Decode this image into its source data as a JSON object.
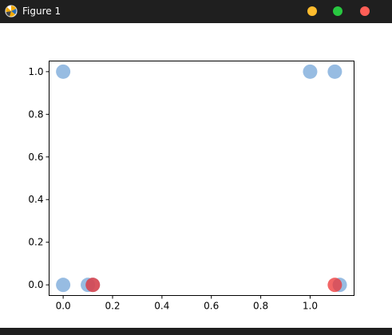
{
  "window": {
    "title": "Figure 1",
    "app_icon": "matplotlib-icon",
    "buttons": {
      "minimize_color": "#febc2e",
      "maximize_color": "#28c840",
      "close_color": "#ff5f57"
    }
  },
  "colors": {
    "blue_points": "#6b9fd6",
    "red_points": "#ee3333",
    "titlebar": "#1f1f1f"
  },
  "chart_data": {
    "type": "scatter",
    "title": "",
    "xlabel": "",
    "ylabel": "",
    "xlim": [
      -0.057,
      1.178
    ],
    "ylim": [
      -0.05,
      1.05
    ],
    "xticks": [
      0.0,
      0.2,
      0.4,
      0.6,
      0.8,
      1.0
    ],
    "xtick_labels": [
      "0.0",
      "0.2",
      "0.4",
      "0.6",
      "0.8",
      "1.0"
    ],
    "yticks": [
      0.0,
      0.2,
      0.4,
      0.6,
      0.8,
      1.0
    ],
    "ytick_labels": [
      "0.0",
      "0.2",
      "0.4",
      "0.6",
      "0.8",
      "1.0"
    ],
    "grid": false,
    "series": [
      {
        "name": "blue",
        "color": "#6b9fd6",
        "alpha": 0.7,
        "points": [
          {
            "x": 0.0,
            "y": 1.0
          },
          {
            "x": 1.0,
            "y": 1.0
          },
          {
            "x": 1.1,
            "y": 1.0
          },
          {
            "x": 0.0,
            "y": 0.0
          },
          {
            "x": 0.1,
            "y": 0.0
          },
          {
            "x": 0.12,
            "y": 0.0
          },
          {
            "x": 1.12,
            "y": 0.0
          }
        ]
      },
      {
        "name": "red",
        "color": "#ee3333",
        "alpha": 0.75,
        "points": [
          {
            "x": 0.12,
            "y": 0.0
          },
          {
            "x": 1.1,
            "y": 0.0
          }
        ]
      }
    ]
  }
}
